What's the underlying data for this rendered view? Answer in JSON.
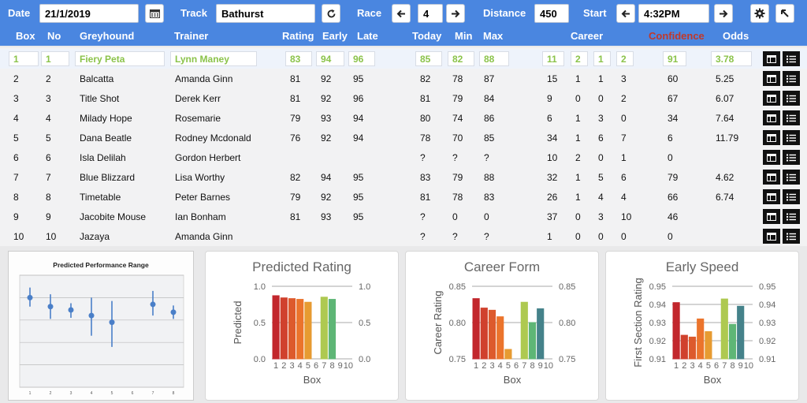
{
  "toolbar": {
    "date_label": "Date",
    "date_value": "21/1/2019",
    "calendar_icon": "calendar-icon",
    "track_label": "Track",
    "track_value": "Bathurst",
    "refresh_icon": "refresh-icon",
    "race_label": "Race",
    "race_value": "4",
    "prev_icon": "arrow-left-icon",
    "next_icon": "arrow-right-icon",
    "distance_label": "Distance",
    "distance_value": "450",
    "start_label": "Start",
    "start_value": "4:32PM",
    "settings_icon": "gear-icon",
    "corner_icon": "arrow-up-left-icon"
  },
  "columns": {
    "box": "Box",
    "no": "No",
    "greyhound": "Greyhound",
    "trainer": "Trainer",
    "rating": "Rating",
    "early": "Early",
    "late": "Late",
    "today": "Today",
    "min": "Min",
    "max": "Max",
    "career": "Career",
    "confidence": "Confidence",
    "odds": "Odds"
  },
  "accent_colors": {
    "header": "#4a86e0",
    "selected_text": "#8bc34a",
    "confidence_label": "#c0392b"
  },
  "rows": [
    {
      "box": "1",
      "no": "1",
      "greyhound": "Fiery Peta",
      "trainer": "Lynn Maney",
      "rating": "83",
      "early": "94",
      "late": "96",
      "today": "85",
      "min": "82",
      "max": "88",
      "c1": "11",
      "c2": "2",
      "c3": "1",
      "c4": "2",
      "confidence": "91",
      "odds": "3.78"
    },
    {
      "box": "2",
      "no": "2",
      "greyhound": "Balcatta",
      "trainer": "Amanda Ginn",
      "rating": "81",
      "early": "92",
      "late": "95",
      "today": "82",
      "min": "78",
      "max": "87",
      "c1": "15",
      "c2": "1",
      "c3": "1",
      "c4": "3",
      "confidence": "60",
      "odds": "5.25"
    },
    {
      "box": "3",
      "no": "3",
      "greyhound": "Title Shot",
      "trainer": "Derek Kerr",
      "rating": "81",
      "early": "92",
      "late": "96",
      "today": "81",
      "min": "79",
      "max": "84",
      "c1": "9",
      "c2": "0",
      "c3": "0",
      "c4": "2",
      "confidence": "67",
      "odds": "6.07"
    },
    {
      "box": "4",
      "no": "4",
      "greyhound": "Milady Hope",
      "trainer": "Rosemarie",
      "rating": "79",
      "early": "93",
      "late": "94",
      "today": "80",
      "min": "74",
      "max": "86",
      "c1": "6",
      "c2": "1",
      "c3": "3",
      "c4": "0",
      "confidence": "34",
      "odds": "7.64"
    },
    {
      "box": "5",
      "no": "5",
      "greyhound": "Dana Beatle",
      "trainer": "Rodney Mcdonald",
      "rating": "76",
      "early": "92",
      "late": "94",
      "today": "78",
      "min": "70",
      "max": "85",
      "c1": "34",
      "c2": "1",
      "c3": "6",
      "c4": "7",
      "confidence": "6",
      "odds": "11.79"
    },
    {
      "box": "6",
      "no": "6",
      "greyhound": "Isla Delilah",
      "trainer": "Gordon Herbert",
      "rating": "",
      "early": "",
      "late": "",
      "today": "?",
      "min": "?",
      "max": "?",
      "c1": "10",
      "c2": "2",
      "c3": "0",
      "c4": "1",
      "confidence": "0",
      "odds": ""
    },
    {
      "box": "7",
      "no": "7",
      "greyhound": "Blue Blizzard",
      "trainer": "Lisa Worthy",
      "rating": "82",
      "early": "94",
      "late": "95",
      "today": "83",
      "min": "79",
      "max": "88",
      "c1": "32",
      "c2": "1",
      "c3": "5",
      "c4": "6",
      "confidence": "79",
      "odds": "4.62"
    },
    {
      "box": "8",
      "no": "8",
      "greyhound": "Timetable",
      "trainer": "Peter Barnes",
      "rating": "79",
      "early": "92",
      "late": "95",
      "today": "81",
      "min": "78",
      "max": "83",
      "c1": "26",
      "c2": "1",
      "c3": "4",
      "c4": "4",
      "confidence": "66",
      "odds": "6.74"
    },
    {
      "box": "9",
      "no": "9",
      "greyhound": "Jacobite Mouse",
      "trainer": "Ian Bonham",
      "rating": "81",
      "early": "93",
      "late": "95",
      "today": "?",
      "min": "0",
      "max": "0",
      "c1": "37",
      "c2": "0",
      "c3": "3",
      "c4": "10",
      "confidence": "46",
      "odds": ""
    },
    {
      "box": "10",
      "no": "10",
      "greyhound": "Jazaya",
      "trainer": "Amanda Ginn",
      "rating": "",
      "early": "",
      "late": "",
      "today": "?",
      "min": "?",
      "max": "?",
      "c1": "1",
      "c2": "0",
      "c3": "0",
      "c4": "0",
      "confidence": "0",
      "odds": ""
    }
  ],
  "row_actions": {
    "view_icon": "table-view-icon",
    "list_icon": "list-icon"
  },
  "chart_data": [
    {
      "type": "scatter",
      "title": "Predicted Performance Range",
      "x": [
        1,
        2,
        3,
        4,
        5,
        7,
        8
      ],
      "tick_labels": [
        "1",
        "2",
        "3",
        "4",
        "5",
        "6",
        "7",
        "8"
      ],
      "y": [
        0.8,
        0.72,
        0.69,
        0.64,
        0.58,
        0.74,
        0.67
      ],
      "err_low": [
        0.72,
        0.61,
        0.62,
        0.46,
        0.36,
        0.64,
        0.61
      ],
      "err_high": [
        0.89,
        0.83,
        0.75,
        0.8,
        0.77,
        0.86,
        0.73
      ],
      "ylim": [
        0,
        1
      ],
      "grid": true,
      "legend": "none"
    },
    {
      "type": "bar",
      "title": "Predicted Rating",
      "xlabel": "Box",
      "ylabel": "Predicted",
      "categories": [
        "1",
        "2",
        "3",
        "4",
        "5",
        "6",
        "7",
        "8",
        "9",
        "10"
      ],
      "values": [
        0.87,
        0.84,
        0.83,
        0.82,
        0.78,
        null,
        0.85,
        0.82,
        null,
        null
      ],
      "ylim": [
        0,
        1
      ],
      "yticks": [
        "0.0",
        "0.5",
        "1.0"
      ],
      "right_axis": true,
      "grid": true
    },
    {
      "type": "bar",
      "title": "Career Form",
      "xlabel": "Box",
      "ylabel": "Career Rating",
      "categories": [
        "1",
        "2",
        "3",
        "4",
        "5",
        "6",
        "7",
        "8",
        "9",
        "10"
      ],
      "values": [
        0.833,
        0.82,
        0.817,
        0.808,
        0.763,
        null,
        0.828,
        0.8,
        0.819,
        null
      ],
      "ylim": [
        0.75,
        0.85
      ],
      "yticks": [
        "0.75",
        "0.80",
        "0.85"
      ],
      "right_axis": true,
      "grid": true
    },
    {
      "type": "bar",
      "title": "Early Speed",
      "xlabel": "Box",
      "ylabel": "First Section Rating",
      "categories": [
        "1",
        "2",
        "3",
        "4",
        "5",
        "6",
        "7",
        "8",
        "9",
        "10"
      ],
      "values": [
        0.941,
        0.923,
        0.922,
        0.932,
        0.925,
        null,
        0.943,
        0.929,
        0.939,
        null
      ],
      "ylim": [
        0.91,
        0.95
      ],
      "yticks": [
        "0.91",
        "0.92",
        "0.93",
        "0.94",
        "0.95"
      ],
      "right_axis": true,
      "grid": true
    }
  ]
}
